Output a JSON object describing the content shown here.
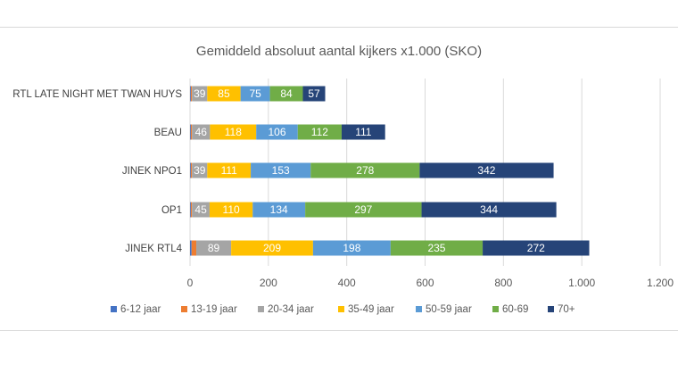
{
  "chart_data": {
    "type": "bar",
    "orientation": "horizontal",
    "stacked": true,
    "title": "Gemiddeld absoluut aantal kijkers x1.000 (SKO)",
    "categories": [
      "RTL LATE NIGHT MET TWAN HUYS",
      "BEAU",
      "JINEK NPO1",
      "OP1",
      "JINEK RTL4"
    ],
    "series": [
      {
        "name": "6-12 jaar",
        "color": "#4472c4",
        "values": [
          2,
          2,
          2,
          2,
          4
        ]
      },
      {
        "name": "13-19 jaar",
        "color": "#ed7d31",
        "values": [
          3,
          3,
          3,
          3,
          12
        ]
      },
      {
        "name": "20-34 jaar",
        "color": "#a5a5a5",
        "values": [
          39,
          46,
          39,
          45,
          89
        ],
        "labels": [
          "39",
          "46",
          "39",
          "45",
          "89"
        ]
      },
      {
        "name": "35-49 jaar",
        "color": "#ffc000",
        "values": [
          85,
          118,
          111,
          110,
          209
        ],
        "labels": [
          "85",
          "118",
          "111",
          "110",
          "209"
        ]
      },
      {
        "name": "50-59 jaar",
        "color": "#5b9bd5",
        "values": [
          75,
          106,
          153,
          134,
          198
        ],
        "labels": [
          "75",
          "106",
          "153",
          "134",
          "198"
        ]
      },
      {
        "name": "60-69",
        "color": "#70ad47",
        "values": [
          84,
          112,
          278,
          297,
          235
        ],
        "labels": [
          "84",
          "112",
          "278",
          "297",
          "235"
        ]
      },
      {
        "name": "70+",
        "color": "#264478",
        "values": [
          57,
          111,
          342,
          344,
          272
        ],
        "labels": [
          "57",
          "111",
          "342",
          "344",
          "272"
        ]
      }
    ],
    "xlim": [
      0,
      1200
    ],
    "xticks": [
      0,
      200,
      400,
      600,
      800,
      1000,
      1200
    ],
    "xtick_labels": [
      "0",
      "200",
      "400",
      "600",
      "800",
      "1.000",
      "1.200"
    ],
    "grid": true,
    "legend": "bottom"
  }
}
